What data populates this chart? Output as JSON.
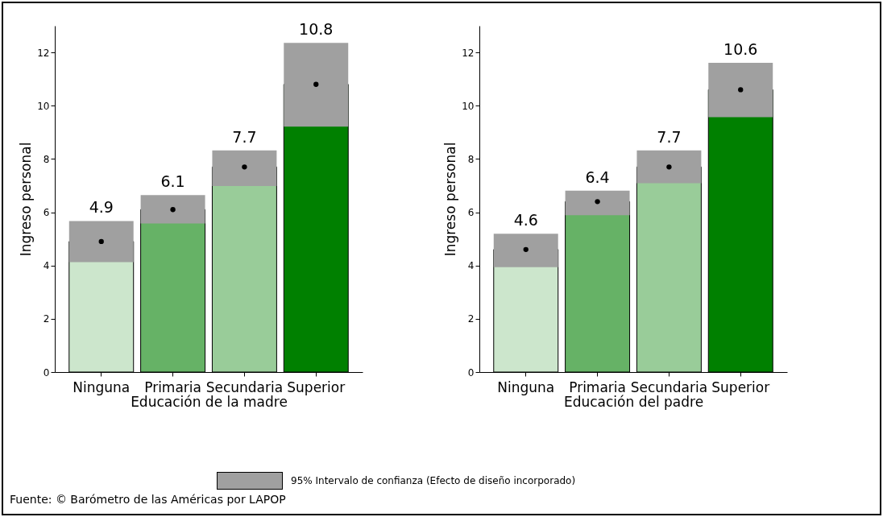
{
  "chart_data": [
    {
      "type": "bar",
      "categories": [
        "Ninguna",
        "Primaria",
        "Secundaria",
        "Superior"
      ],
      "xlabel": "Educación de la madre",
      "ylabel": "Ingreso personal",
      "ylim": [
        0,
        13
      ],
      "yticks": [
        0,
        2,
        4,
        6,
        8,
        10,
        12
      ],
      "annotations": [
        "95% Intervalo de confianza (Efecto de diseño incorporado)",
        "Fuente: © Barómetro de las Américas por LAPOP"
      ],
      "series": [
        {
          "type": "bar",
          "values": [
            4.9,
            6.1,
            7.7,
            10.8
          ],
          "value_labels": [
            "4.9",
            "6.1",
            "7.7",
            "10.8"
          ],
          "colors": [
            "#cce6cc",
            "#66b266",
            "#99cc99",
            "#008000"
          ],
          "errors": [
            [
              4.13,
              5.67
            ],
            [
              5.58,
              6.64
            ],
            [
              6.98,
              8.32
            ],
            [
              9.21,
              12.36
            ]
          ]
        },
        {
          "type": "scatter",
          "x": [
            "Ninguna",
            "Primaria",
            "Secundaria",
            "Superior"
          ],
          "values": [
            4.9,
            6.1,
            7.7,
            10.8
          ],
          "color": "#000000",
          "marker": "circle"
        }
      ]
    },
    {
      "type": "bar",
      "categories": [
        "Ninguna",
        "Primaria",
        "Secundaria",
        "Superior"
      ],
      "xlabel": "Educación del padre",
      "ylabel": "Ingreso personal",
      "ylim": [
        0,
        13
      ],
      "yticks": [
        0,
        2,
        4,
        6,
        8,
        10,
        12
      ],
      "series": [
        {
          "type": "bar",
          "values": [
            4.6,
            6.4,
            7.7,
            10.6
          ],
          "value_labels": [
            "4.6",
            "6.4",
            "7.7",
            "10.6"
          ],
          "colors": [
            "#cce6cc",
            "#66b266",
            "#99cc99",
            "#008000"
          ],
          "errors": [
            [
              3.94,
              5.19
            ],
            [
              5.89,
              6.81
            ],
            [
              7.09,
              8.32
            ],
            [
              9.57,
              11.61
            ]
          ]
        },
        {
          "type": "scatter",
          "x": [
            "Ninguna",
            "Primaria",
            "Secundaria",
            "Superior"
          ],
          "values": [
            4.6,
            6.4,
            7.7,
            10.6
          ],
          "color": "#000000",
          "marker": "circle"
        }
      ]
    }
  ]
}
